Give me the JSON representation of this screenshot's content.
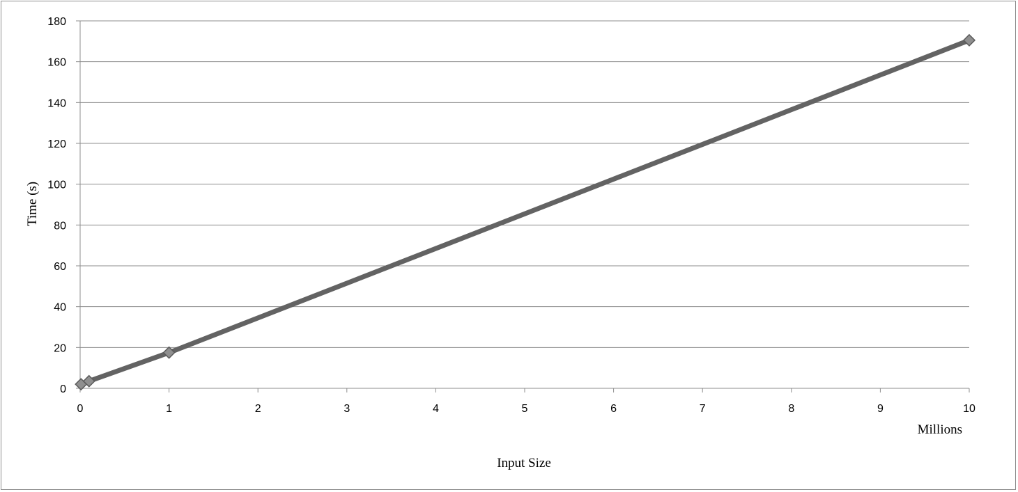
{
  "chart_data": {
    "type": "line",
    "title": "",
    "xlabel": "Input Size",
    "x_unit_label": "Millions",
    "ylabel": "Time (s)",
    "xlim": [
      0,
      10
    ],
    "ylim": [
      0,
      180
    ],
    "x_ticks": [
      "0",
      "1",
      "2",
      "3",
      "4",
      "5",
      "6",
      "7",
      "8",
      "9",
      "10"
    ],
    "y_ticks": [
      "0",
      "20",
      "40",
      "60",
      "80",
      "100",
      "120",
      "140",
      "160",
      "180"
    ],
    "grid": "horizontal",
    "legend": "none",
    "series": [
      {
        "x": [
          0.01,
          0.1,
          1,
          10
        ],
        "y": [
          2,
          3.5,
          17.5,
          170.5
        ]
      }
    ],
    "colors": {
      "line": "#636363",
      "marker_fill": "#8f8f8f",
      "marker_stroke": "#5a5a5a",
      "grid": "#8c8c8c",
      "axis": "#8c8c8c"
    }
  }
}
